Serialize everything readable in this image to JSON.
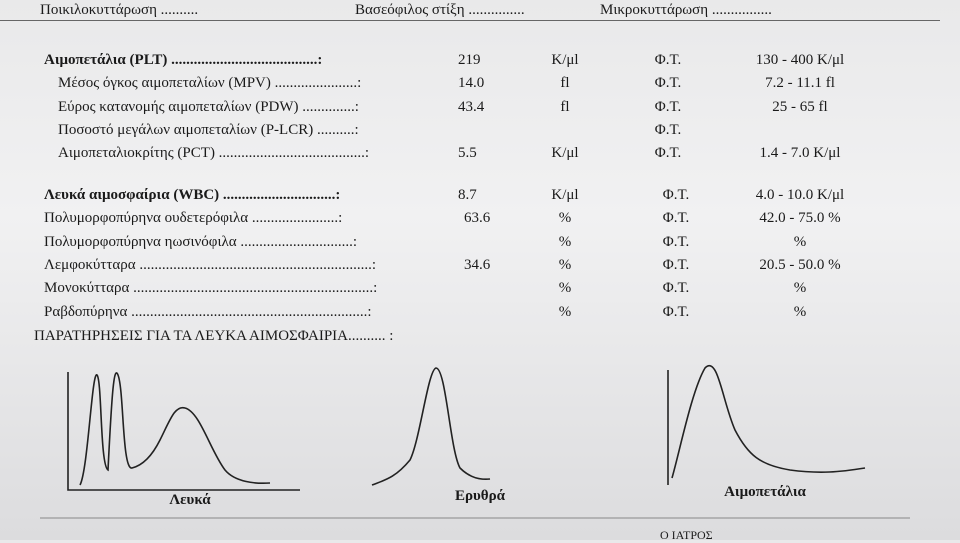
{
  "top": [
    "Ποικιλοκυττάρωση ..........",
    "Βασεόφιλος στίξη ...............",
    "Μικροκυττάρωση ................"
  ],
  "sections": [
    {
      "rows": [
        {
          "label": "Αιμοπετάλια (PLT) .......................................:",
          "value": "219",
          "unit": "K/μl",
          "ref": "Φ.Τ.",
          "range": "130 - 400 K/μl"
        },
        {
          "label": "Μέσος όγκος αιμοπεταλίων (MPV) ......................:",
          "value": "14.0",
          "unit": "fl",
          "ref": "Φ.Τ.",
          "range": "7.2 - 11.1 fl"
        },
        {
          "label": "Εύρος κατανομής αιμοπεταλίων (PDW) ..............:",
          "value": "43.4",
          "unit": "fl",
          "ref": "Φ.Τ.",
          "range": "25 - 65 fl"
        },
        {
          "label": "Ποσοστό μεγάλων αιμοπεταλίων (P-LCR) ..........:",
          "ref": "Φ.Τ."
        },
        {
          "label": "Αιμοπεταλιοκρίτης (PCT) .......................................:",
          "value": "5.5",
          "unit": "K/μl",
          "ref": "Φ.Τ.",
          "range": "1.4 - 7.0 K/μl"
        }
      ]
    },
    {
      "rows": [
        {
          "label": "Λευκά αιμοσφαίρια (WBC) ..............................:",
          "value": "8.7",
          "unit": "K/μl",
          "ref": "Φ.Τ.",
          "range": "4.0 - 10.0 K/μl"
        },
        {
          "label": "Πολυμορφοπύρηνα ουδετερόφιλα .......................:",
          "value": "63.6",
          "unit": "%",
          "ref": "Φ.Τ.",
          "range": "42.0 - 75.0 %"
        },
        {
          "label": "Πολυμορφοπύρηνα ηωσινόφιλα ..............................:",
          "unit": "%",
          "ref": "Φ.Τ.",
          "range": "%"
        },
        {
          "label": "Λεμφοκύτταρα ..............................................................:",
          "value": "34.6",
          "unit": "%",
          "ref": "Φ.Τ.",
          "range": "20.5 - 50.0 %"
        },
        {
          "label": "Μονοκύτταρα ................................................................:",
          "unit": "%",
          "ref": "Φ.Τ.",
          "range": "%"
        },
        {
          "label": "Ραβδοπύρηνα ...............................................................:",
          "unit": "%",
          "ref": "Φ.Τ.",
          "range": "%"
        }
      ]
    }
  ],
  "notes": "ΠΑΡΑΤΗΡΗΣΕΙΣ ΓΙΑ ΤΑ ΛΕΥΚΑ ΑΙΜΟΣΦΑΙΡΙΑ.......... :",
  "histograms": [
    "Λευκά",
    "Ερυθρά",
    "Αιμοπετάλια"
  ],
  "footer": "Ο ΙΑΤΡΟΣ"
}
